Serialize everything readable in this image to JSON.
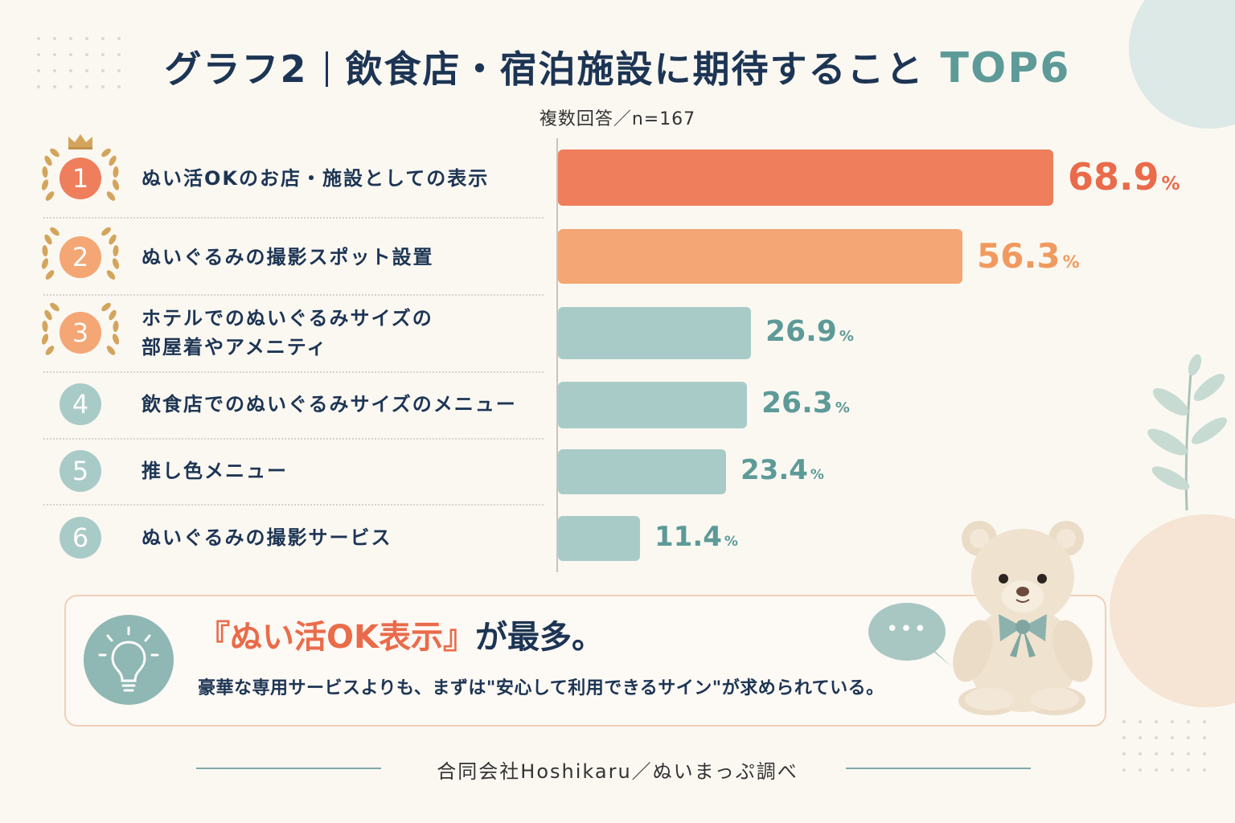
{
  "title": {
    "prefix": "グラフ2",
    "main": "飲食店・宿泊施設に期待すること",
    "suffix": "TOP6"
  },
  "subtitle": "複数回答／n=167",
  "chart_data": {
    "type": "bar",
    "orientation": "horizontal",
    "categories": [
      "ぬい活OKのお店・施設としての表示",
      "ぬいぐるみの撮影スポット設置",
      "ホテルでのぬいぐるみサイズの部屋着やアメニティ",
      "飲食店でのぬいぐるみサイズのメニュー",
      "推し色メニュー",
      "ぬいぐるみの撮影サービス"
    ],
    "label_lines": [
      [
        "ぬい活OKのお店・施設としての表示"
      ],
      [
        "ぬいぐるみの撮影スポット設置"
      ],
      [
        "ホテルでのぬいぐるみサイズの",
        "部屋着やアメニティ"
      ],
      [
        "飲食店でのぬいぐるみサイズのメニュー"
      ],
      [
        "推し色メニュー"
      ],
      [
        "ぬいぐるみの撮影サービス"
      ]
    ],
    "ranks": [
      "1",
      "2",
      "3",
      "4",
      "5",
      "6"
    ],
    "values": [
      68.9,
      56.3,
      26.9,
      26.3,
      23.4,
      11.4
    ],
    "value_labels": [
      "68.9",
      "56.3",
      "26.9",
      "26.3",
      "23.4",
      "11.4"
    ],
    "unit": "%",
    "xlim": [
      0,
      68.9
    ],
    "colors": [
      "#ee7e5c",
      "#f4a674",
      "#a9cbc8",
      "#a9cbc8",
      "#a9cbc8",
      "#a9cbc8"
    ],
    "label_colors": [
      "#ea6b4a",
      "#f19a5f",
      "#5d9a98",
      "#5d9a98",
      "#5d9a98",
      "#5d9a98"
    ],
    "rank_colors": [
      "#ee7e5c",
      "#f4a674",
      "#f4a674",
      "#a9cbc8",
      "#a9cbc8",
      "#a9cbc8"
    ],
    "grid": false,
    "legend": "none"
  },
  "callout": {
    "headline_accent": "『ぬい活OK表示』",
    "headline_rest": "が最多。",
    "body": "豪華な専用サービスよりも、まずは\"安心して利用できるサイン\"が求められている。",
    "bulb_icon": "lightbulb-icon",
    "bubble_icon": "speech-bubble-icon",
    "bubble_text": "•••"
  },
  "footer": "合同会社Hoshikaru／ぬいまっぷ調べ",
  "decorations": {
    "crown_icon": "crown-icon",
    "laurel_icon": "laurel-icon",
    "leaf_icon": "leaf-branch-icon",
    "bear_icon": "teddy-bear-icon",
    "accent": "#ea6b4a",
    "teal": "#5d9a98",
    "navy": "#1d3554"
  }
}
